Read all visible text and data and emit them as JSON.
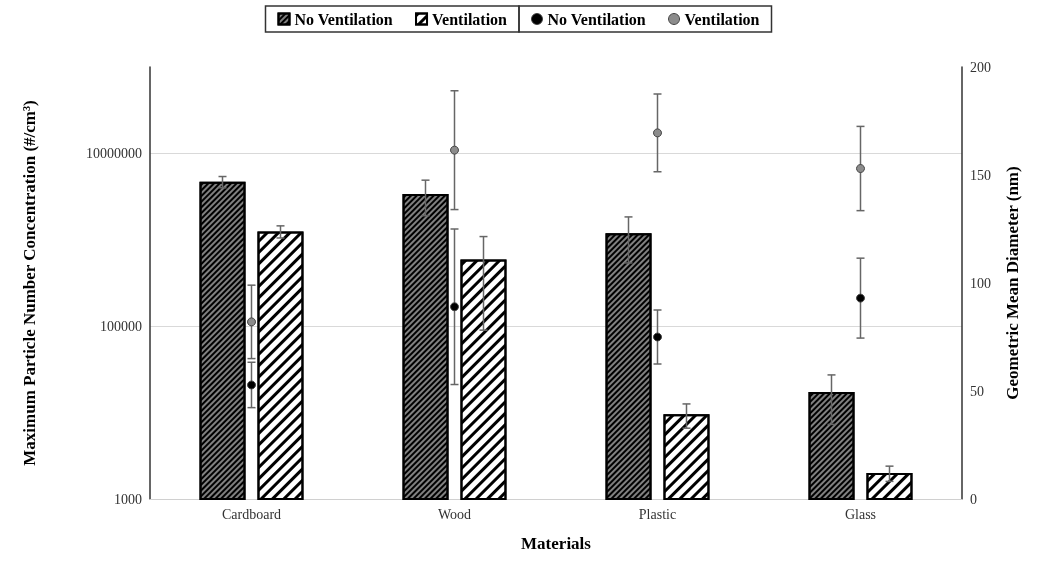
{
  "chart_data": {
    "type": "bar",
    "xlabel": "Materials",
    "ylabel": "Maximum Particle Number Concentration (#/cm³)",
    "y2label": "Geometric Mean Diameter (nm)",
    "categories": [
      "Cardboard",
      "Wood",
      "Plastic",
      "Glass"
    ],
    "series": [
      {
        "name": "No Ventilation",
        "color": "#808080",
        "values": [
          4700000,
          3400000,
          1190000,
          17300
        ],
        "errors": [
          700000,
          1500000,
          650000,
          10000
        ]
      },
      {
        "name": "Ventilation",
        "color": "#ffffff",
        "values": [
          1250000,
          590000,
          9600,
          2000
        ],
        "errors": [
          200000,
          500000,
          3000,
          400
        ]
      },
      {
        "name": "No Ventilation",
        "type": "scatter",
        "axis": "y2",
        "color": "#000000",
        "values": [
          52.8,
          89,
          75,
          93
        ],
        "errors": [
          10.5,
          36,
          12.5,
          18.5
        ]
      },
      {
        "name": "Ventilation",
        "type": "scatter",
        "axis": "y2",
        "color": "#8c8c8c",
        "values": [
          82,
          161.5,
          169.5,
          153
        ],
        "errors": [
          17,
          27.5,
          18,
          19.5
        ]
      }
    ],
    "log": "y",
    "ylim": [
      1000,
      100000000
    ],
    "yticks": [
      1000,
      100000,
      10000000
    ],
    "y2lim": [
      0,
      200
    ],
    "y2ticks": [
      0,
      50,
      100,
      150,
      200
    ],
    "grid": "y",
    "legend": "top",
    "marker": "circle"
  }
}
